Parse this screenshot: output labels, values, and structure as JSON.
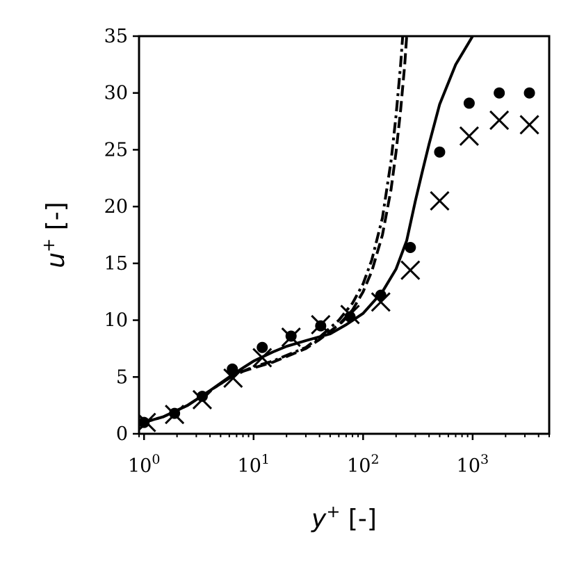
{
  "chart_data": {
    "type": "line",
    "xscale": "log",
    "xlim": [
      0.9,
      5000
    ],
    "ylim": [
      0,
      35
    ],
    "grid": false,
    "legend": "none",
    "xlabel": {
      "var": "y",
      "sup": "+",
      "unit": "[-]"
    },
    "ylabel": {
      "var": "u",
      "sup": "+",
      "unit": "[-]"
    },
    "xticks": [
      {
        "value": 1,
        "base": "10",
        "exp": "0"
      },
      {
        "value": 10,
        "base": "10",
        "exp": "1"
      },
      {
        "value": 100,
        "base": "10",
        "exp": "2"
      },
      {
        "value": 1000,
        "base": "10",
        "exp": "3"
      }
    ],
    "yticks": [
      0,
      5,
      10,
      15,
      20,
      25,
      30,
      35
    ],
    "series": [
      {
        "style": "solid",
        "color": "#000000",
        "x": [
          0.95,
          1.5,
          2.5,
          4,
          6,
          8,
          10,
          15,
          20,
          30,
          50,
          70,
          100,
          150,
          200,
          250,
          300,
          350,
          400,
          500,
          700,
          1000
        ],
        "y": [
          0.95,
          1.5,
          2.5,
          3.8,
          5.0,
          5.8,
          6.4,
          7.2,
          7.7,
          8.2,
          8.8,
          9.6,
          10.6,
          12.5,
          14.5,
          17.0,
          20.5,
          23.2,
          25.5,
          29.0,
          32.5,
          35.0
        ]
      },
      {
        "style": "dashed",
        "color": "#000000",
        "x": [
          0.95,
          1.5,
          2.5,
          4,
          6,
          8,
          10,
          15,
          20,
          30,
          40,
          60,
          80,
          100,
          120,
          150,
          180,
          200,
          220,
          240,
          250
        ],
        "y": [
          0.95,
          1.5,
          2.5,
          3.8,
          4.9,
          5.5,
          5.8,
          6.3,
          6.8,
          7.5,
          8.3,
          9.6,
          10.9,
          12.5,
          14.3,
          17.5,
          21.5,
          24.8,
          28.5,
          32.5,
          35.0
        ]
      },
      {
        "style": "dashdot",
        "color": "#000000",
        "x": [
          0.95,
          1.5,
          2.5,
          4,
          6,
          8,
          10,
          15,
          20,
          30,
          40,
          60,
          80,
          100,
          120,
          150,
          180,
          200,
          220,
          230
        ],
        "y": [
          0.95,
          1.5,
          2.5,
          3.8,
          4.9,
          5.5,
          5.9,
          6.4,
          6.9,
          7.6,
          8.5,
          10.0,
          11.5,
          13.2,
          15.3,
          19.0,
          24.0,
          28.0,
          32.5,
          35.0
        ]
      },
      {
        "style": "dots",
        "color": "#000000",
        "x": [
          1,
          1.9,
          3.4,
          6.4,
          12,
          22,
          41,
          76,
          145,
          270,
          500,
          930,
          1750,
          3300
        ],
        "y": [
          1.0,
          1.8,
          3.3,
          5.7,
          7.6,
          8.6,
          9.5,
          10.3,
          12.2,
          16.4,
          24.8,
          29.1,
          30.0,
          30.0
        ]
      },
      {
        "style": "crosses",
        "color": "#000000",
        "x": [
          1.05,
          1.9,
          3.4,
          6.5,
          12,
          22,
          41,
          76,
          145,
          270,
          500,
          930,
          1750,
          3300
        ],
        "y": [
          1.0,
          1.7,
          3.0,
          4.9,
          6.7,
          8.5,
          9.6,
          10.5,
          11.6,
          14.4,
          20.5,
          26.2,
          27.6,
          27.2
        ]
      }
    ]
  }
}
